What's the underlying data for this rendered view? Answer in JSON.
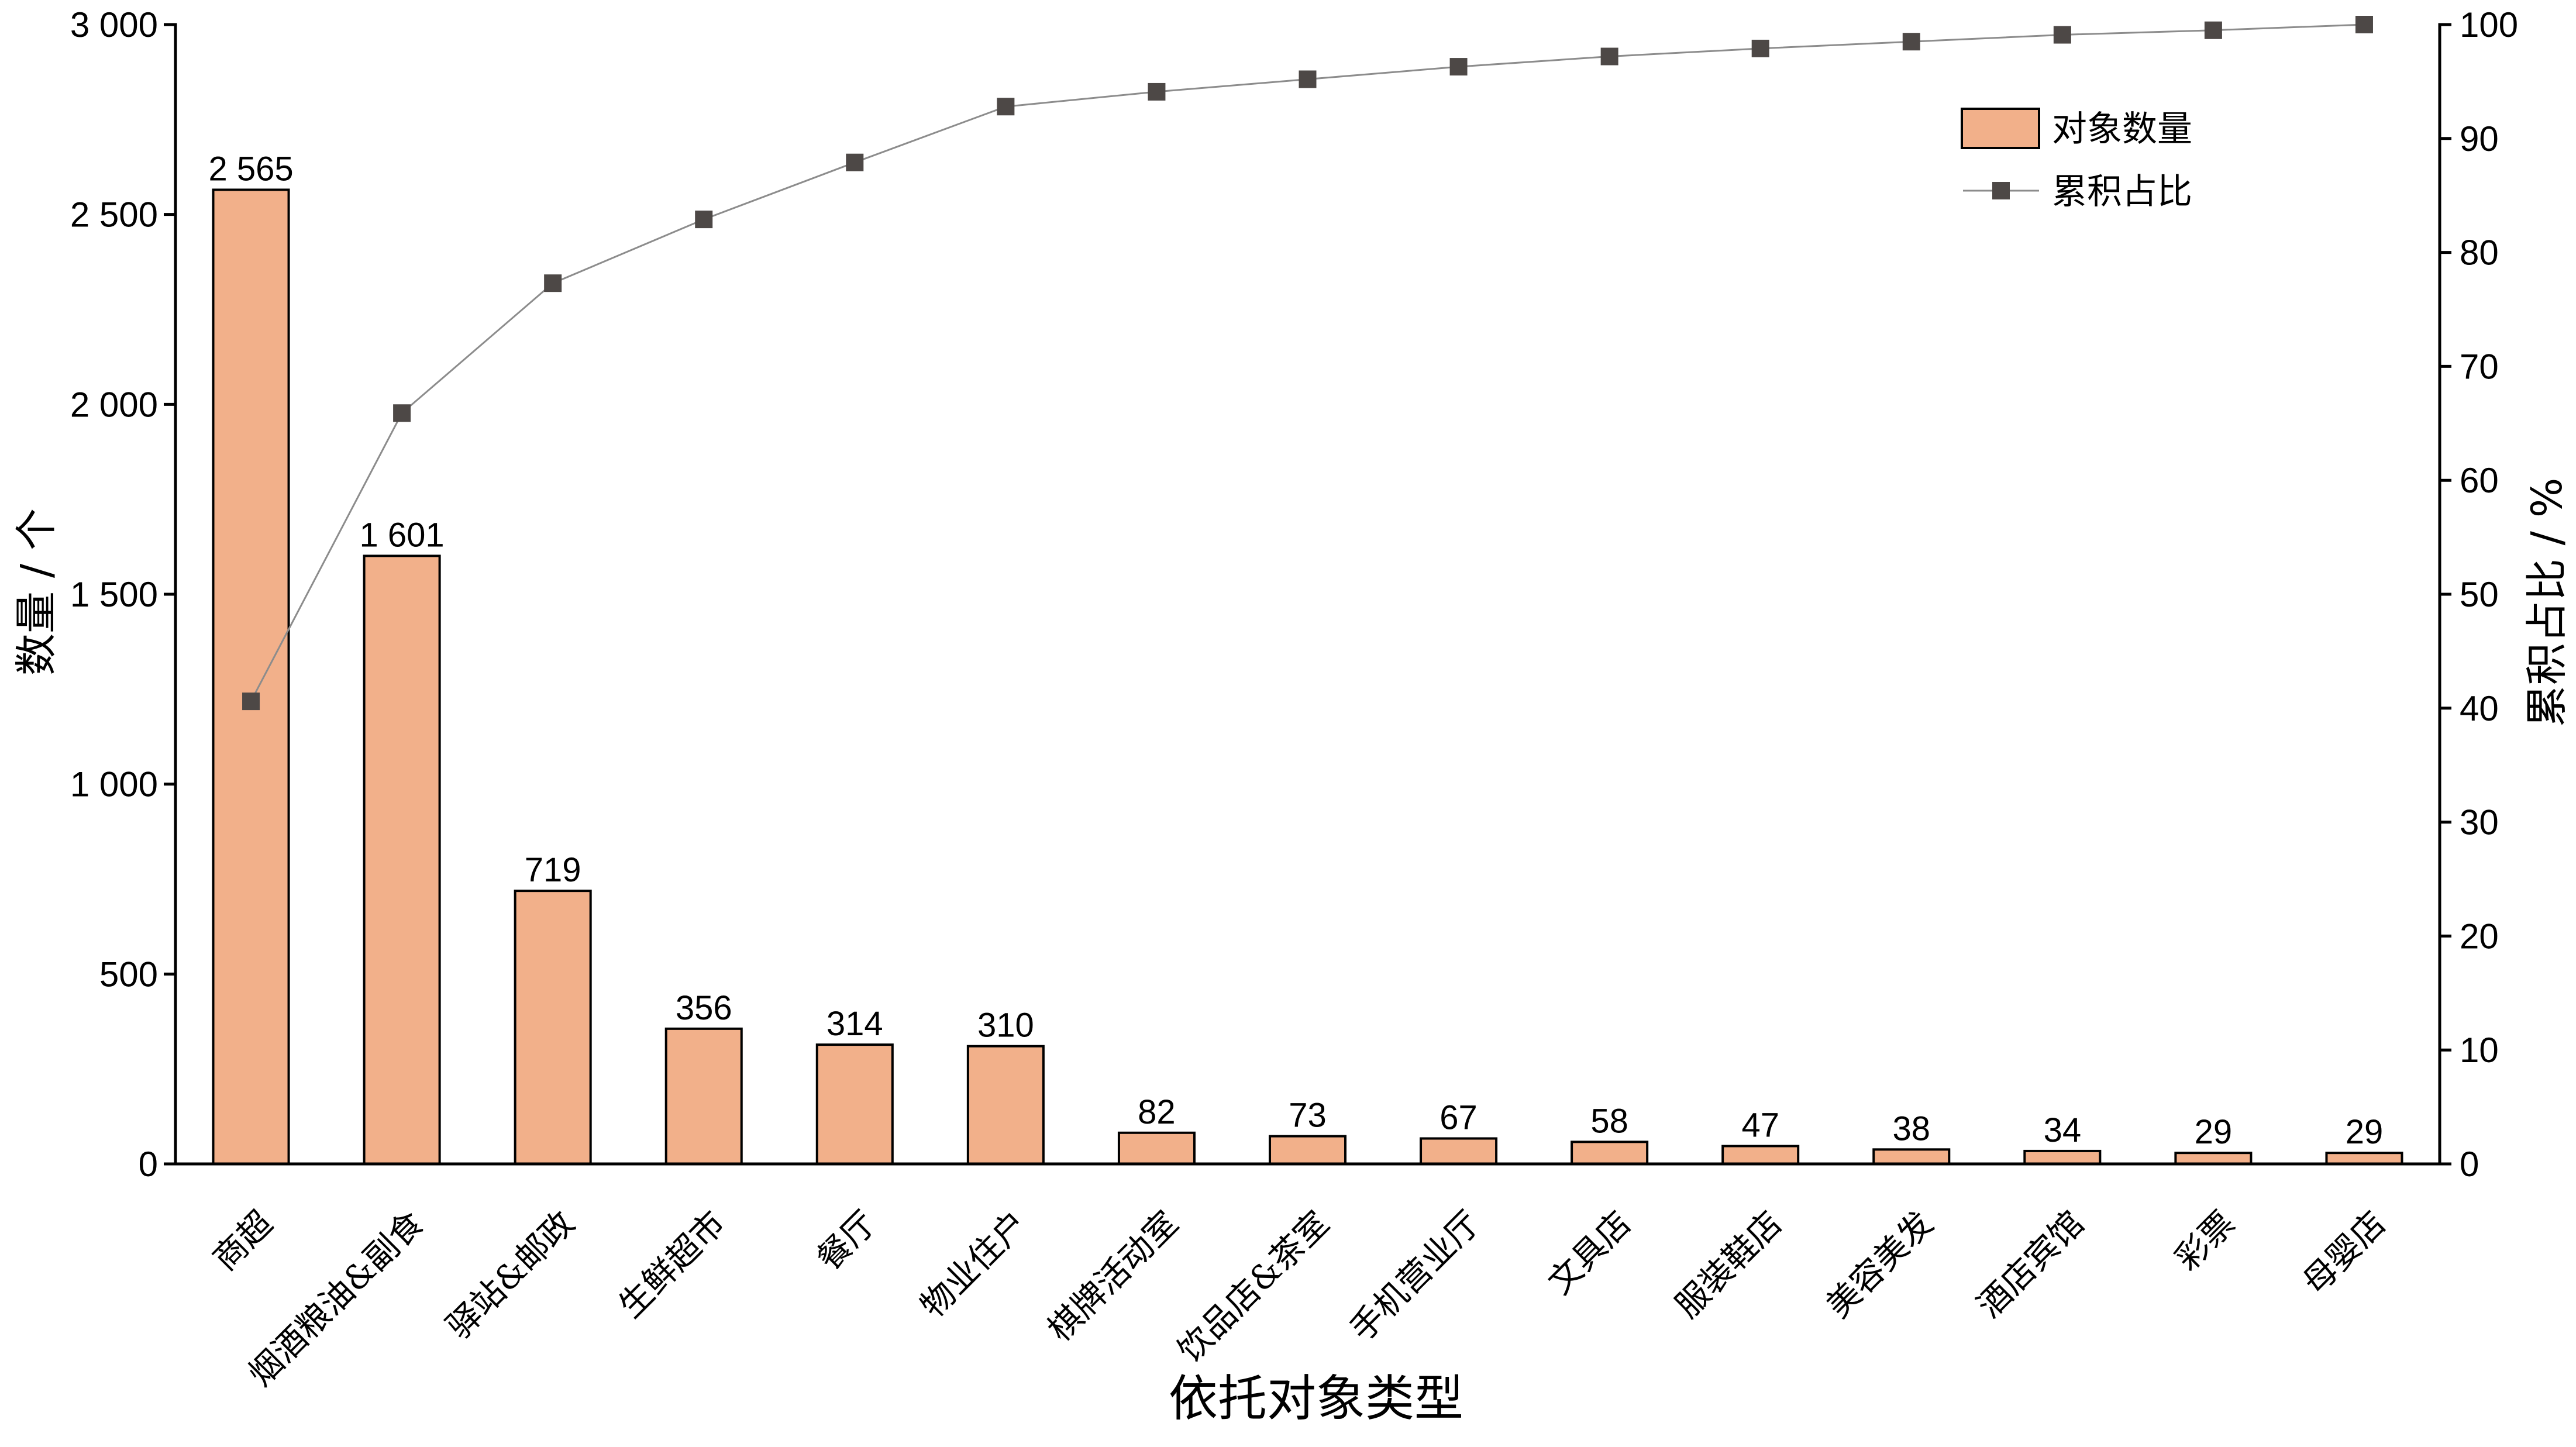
{
  "chart_data": {
    "type": "bar",
    "categories": [
      "商超",
      "烟酒粮油&副食",
      "驿站&邮政",
      "生鲜超市",
      "餐厅",
      "物业住户",
      "棋牌活动室",
      "饮品店&茶室",
      "手机营业厅",
      "文具店",
      "服装鞋店",
      "美容美发",
      "酒店宾馆",
      "彩票",
      "母婴店"
    ],
    "series": [
      {
        "name": "对象数量",
        "type": "bar",
        "axis": "left",
        "values": [
          2565,
          1601,
          719,
          356,
          314,
          310,
          82,
          73,
          67,
          58,
          47,
          38,
          34,
          29,
          29
        ],
        "data_labels": [
          "2 565",
          "1 601",
          "719",
          "356",
          "314",
          "310",
          "82",
          "73",
          "67",
          "58",
          "47",
          "38",
          "34",
          "29",
          "29"
        ]
      },
      {
        "name": "累积占比",
        "type": "line",
        "axis": "right",
        "values": [
          40.6,
          65.9,
          77.3,
          82.9,
          87.9,
          92.8,
          94.1,
          95.2,
          96.3,
          97.2,
          97.9,
          98.5,
          99.1,
          99.5,
          100
        ]
      }
    ],
    "xlabel": "依托对象类型",
    "ylabel": "数量 / 个",
    "y2label": "累积占比 / %",
    "ylim": [
      0,
      3000
    ],
    "y2lim": [
      0,
      100
    ],
    "yticks": [
      0,
      500,
      1000,
      1500,
      2000,
      2500,
      3000
    ],
    "ytick_labels": [
      "0",
      "500",
      "1 000",
      "1 500",
      "2 000",
      "2 500",
      "3 000"
    ],
    "y2ticks": [
      0,
      10,
      20,
      30,
      40,
      50,
      60,
      70,
      80,
      90,
      100
    ],
    "y2tick_labels": [
      "0",
      "10",
      "20",
      "30",
      "40",
      "50",
      "60",
      "70",
      "80",
      "90",
      "100"
    ],
    "legend": {
      "placement": "top-right"
    },
    "grid": false,
    "colors": {
      "bar_fill": "#F2B08A",
      "bar_edge": "#000000",
      "line": "#8C8C8C",
      "marker": "#4D4846",
      "axis": "#000000"
    }
  }
}
